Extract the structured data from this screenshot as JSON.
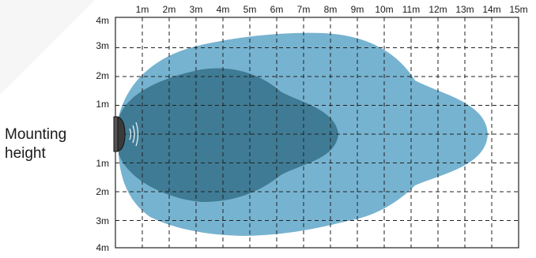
{
  "diagram": {
    "x_ticks": [
      "1m",
      "2m",
      "3m",
      "4m",
      "5m",
      "6m",
      "7m",
      "8m",
      "9m",
      "10m",
      "11m",
      "12m",
      "13m",
      "14m",
      "15m"
    ],
    "y_ticks_upper": [
      "4m",
      "3m",
      "2m",
      "1m"
    ],
    "y_ticks_lower": [
      "1m",
      "2m",
      "3m",
      "4m"
    ],
    "side_label_line1": "Mounting",
    "side_label_line2": "height",
    "colors": {
      "outer_zone": "#76b3d0",
      "inner_zone": "#3f7b94",
      "grid": "#222222",
      "sensor": "#3a3a3a"
    }
  }
}
